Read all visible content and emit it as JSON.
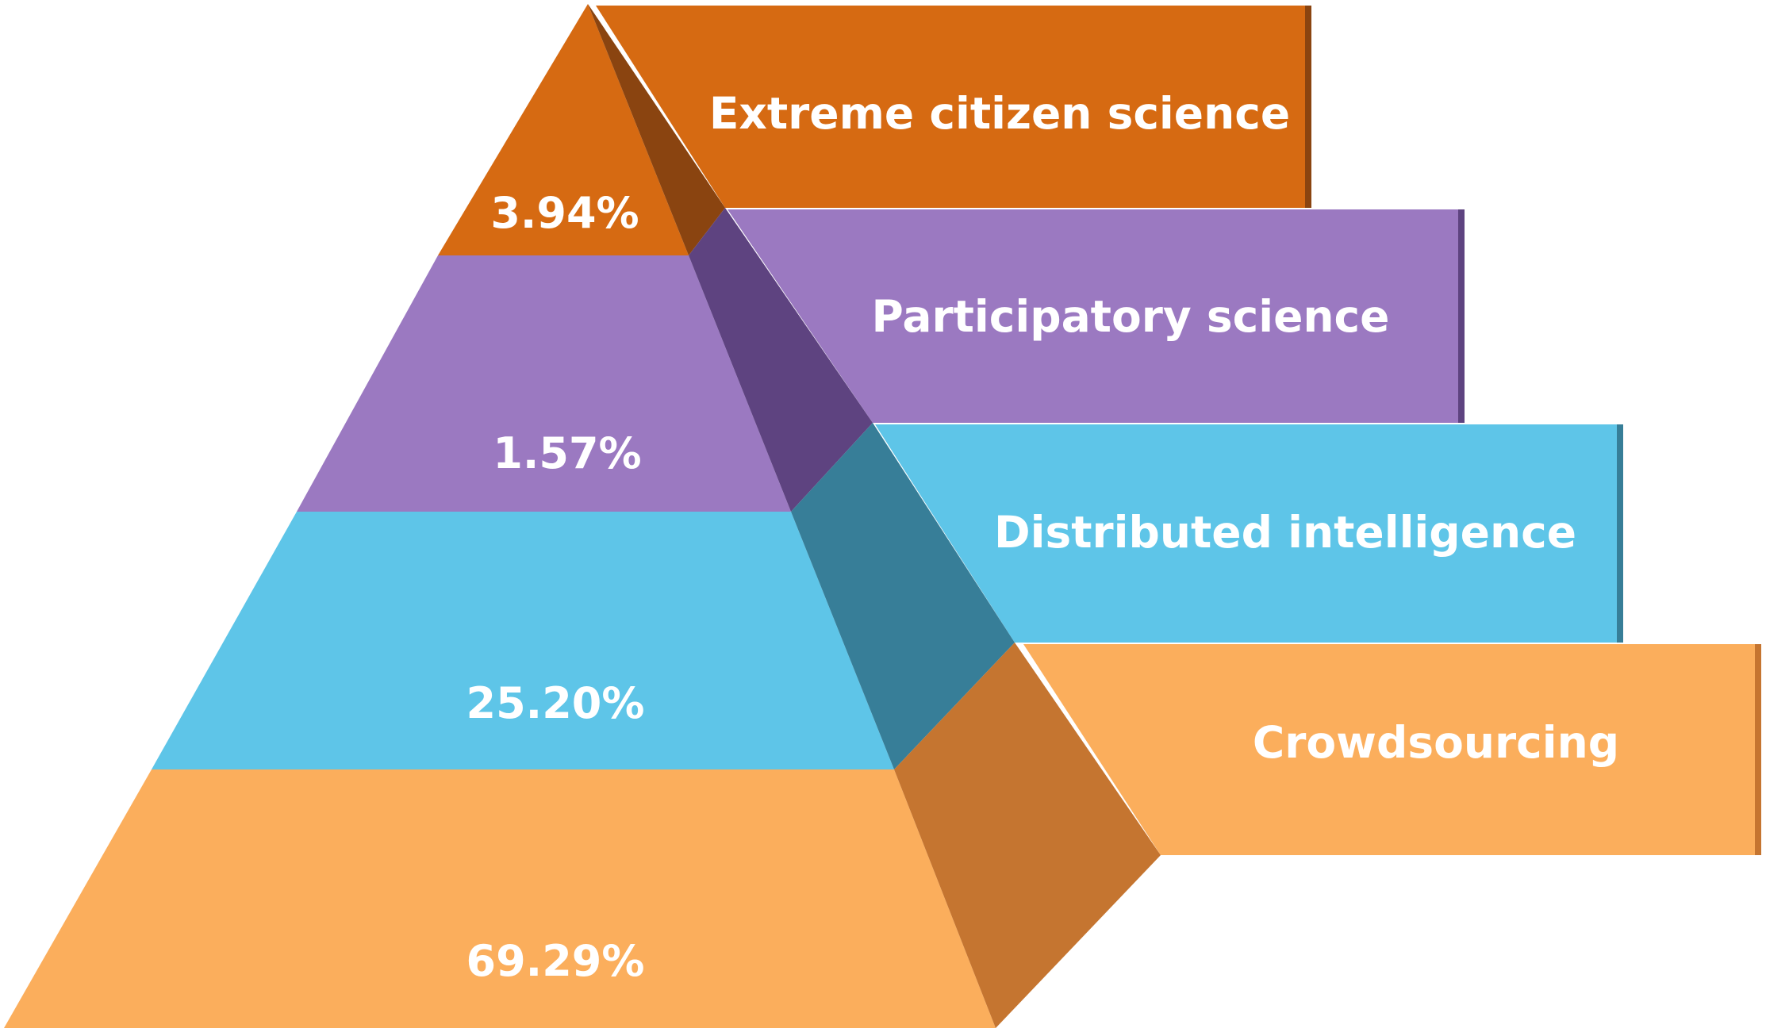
{
  "levels": [
    {
      "label": "Extreme citizen science",
      "percent": "3.94%",
      "color": "#D66A12",
      "side_color": "#8A4410"
    },
    {
      "label": "Participatory science",
      "percent": "1.57%",
      "color": "#9B79C1",
      "side_color": "#5E4380"
    },
    {
      "label": "Distributed intelligence",
      "percent": "25.20%",
      "color": "#5EC5E8",
      "side_color": "#377E98"
    },
    {
      "label": "Crowdsourcing",
      "percent": "69.29%",
      "color": "#FBAE5C",
      "side_color": "#C57530"
    }
  ]
}
